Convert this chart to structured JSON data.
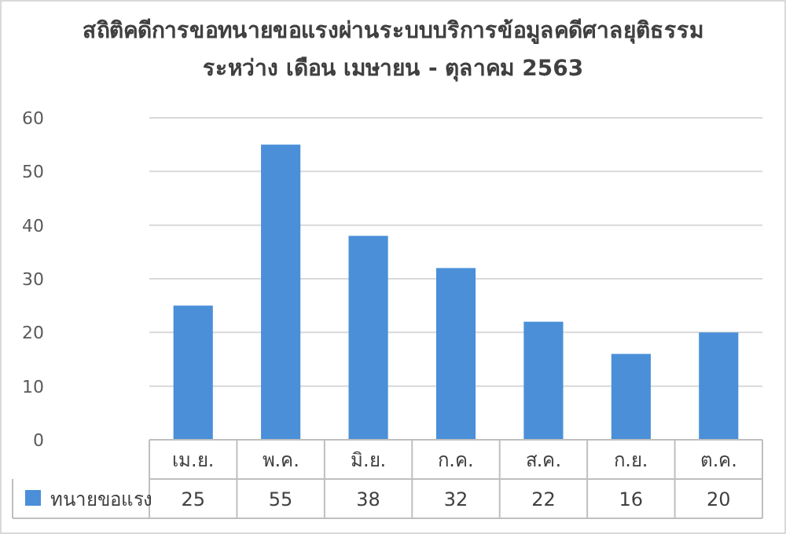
{
  "chart_data": {
    "type": "bar",
    "title": "สถิติคดีการขอทนายขอแรงผ่านระบบบริการข้อมูลคดีศาลยุติธรรม",
    "subtitle": "ระหว่าง เดือน เมษายน - ตุลาคม 2563",
    "categories": [
      "เม.ย.",
      "พ.ค.",
      "มิ.ย.",
      "ก.ค.",
      "ส.ค.",
      "ก.ย.",
      "ต.ค."
    ],
    "series": [
      {
        "name": "ทนายขอแรง",
        "color": "#4a8fd8",
        "values": [
          25,
          55,
          38,
          32,
          22,
          16,
          20
        ]
      }
    ],
    "ylim": [
      0,
      60
    ],
    "yticks": [
      0,
      10,
      20,
      30,
      40,
      50,
      60
    ],
    "grid": "y",
    "data_labels": true,
    "legend": "bottom left"
  }
}
